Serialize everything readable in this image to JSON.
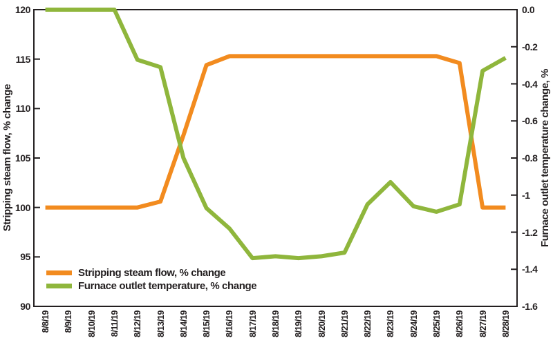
{
  "chart_data": {
    "type": "line",
    "x": [
      "8/8/19",
      "8/9/19",
      "8/10/19",
      "8/11/19",
      "8/12/19",
      "8/13/19",
      "8/14/19",
      "8/15/19",
      "8/16/19",
      "8/17/19",
      "8/18/19",
      "8/19/19",
      "8/20/19",
      "8/21/19",
      "8/22/19",
      "8/23/19",
      "8/24/19",
      "8/25/19",
      "8/26/19",
      "8/27/19",
      "8/28/19"
    ],
    "series": [
      {
        "name": "Stripping steam flow, % change",
        "axis": "left",
        "color": "#F28B1F",
        "values": [
          100,
          100,
          100,
          100,
          100,
          100.6,
          107.3,
          114.4,
          115.3,
          115.3,
          115.3,
          115.3,
          115.3,
          115.3,
          115.3,
          115.3,
          115.3,
          115.3,
          114.6,
          100,
          100
        ]
      },
      {
        "name": "Furnace outlet temperature, % change",
        "axis": "right",
        "color": "#8FB63C",
        "values": [
          0,
          0,
          0,
          0,
          -0.27,
          -0.31,
          -0.8,
          -1.07,
          -1.18,
          -1.34,
          -1.33,
          -1.34,
          -1.33,
          -1.31,
          -1.05,
          -0.93,
          -1.06,
          -1.09,
          -1.05,
          -0.33,
          -0.26
        ]
      }
    ],
    "left_axis": {
      "label": "Stripping steam flow, % change",
      "ticks": [
        "120",
        "115",
        "110",
        "105",
        "100",
        "95",
        "90"
      ],
      "min": 90,
      "max": 120
    },
    "right_axis": {
      "label": "Furnace outlet temperature change, %",
      "ticks": [
        "0.0",
        "-0.2",
        "-0.4",
        "-0.6",
        "-0.8",
        "-1",
        "-1.2",
        "-1.4",
        "-1.6"
      ],
      "min": -1.6,
      "max": 0
    },
    "grid": false,
    "legend_position": "inside-bottom-left",
    "axis_color": "#231f20"
  }
}
